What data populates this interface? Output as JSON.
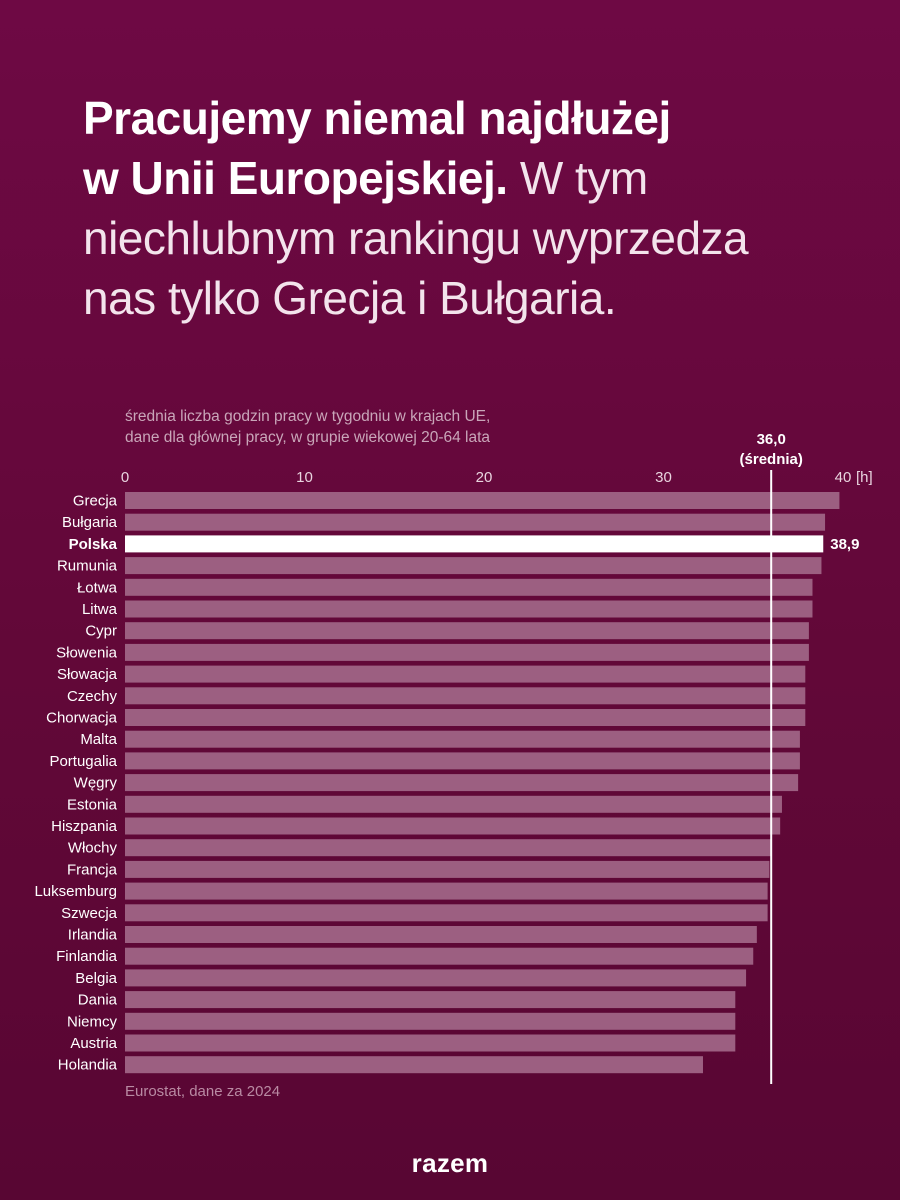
{
  "headline": {
    "strong_line1": "Pracujemy niemal najdłużej",
    "strong_line2": "w Unii Europejskiej.",
    "light_line2": " W tym",
    "light_line3": "niechlubnym rankingu wyprzedza",
    "light_line4": "nas tylko Grecja i Bułgaria."
  },
  "footer": {
    "source": "Eurostat, dane za 2024",
    "brand": "razem"
  },
  "colors": {
    "background": "#6a0840",
    "bar": "#9c5f81",
    "highlight_bar": "#ffffff",
    "text": "#ffffff"
  },
  "chart_data": {
    "type": "bar",
    "orientation": "horizontal",
    "subtitle_line1": "średnia liczba godzin pracy w tygodniu w krajach UE,",
    "subtitle_line2": "dane dla głównej pracy, w grupie wiekowej 20-64 lata",
    "xlim": [
      0,
      40
    ],
    "x_ticks": [
      "0",
      "10",
      "20",
      "30",
      "40"
    ],
    "x_unit": "[h]",
    "grid": false,
    "categories": [
      "Grecja",
      "Bułgaria",
      "Polska",
      "Rumunia",
      "Łotwa",
      "Litwa",
      "Cypr",
      "Słowenia",
      "Słowacja",
      "Czechy",
      "Chorwacja",
      "Malta",
      "Portugalia",
      "Węgry",
      "Estonia",
      "Hiszpania",
      "Włochy",
      "Francja",
      "Luksemburg",
      "Szwecja",
      "Irlandia",
      "Finlandia",
      "Belgia",
      "Dania",
      "Niemcy",
      "Austria",
      "Holandia"
    ],
    "values": [
      39.8,
      39.0,
      38.9,
      38.8,
      38.3,
      38.3,
      38.1,
      38.1,
      37.9,
      37.9,
      37.9,
      37.6,
      37.6,
      37.5,
      36.6,
      36.5,
      36.0,
      35.9,
      35.8,
      35.8,
      35.2,
      35.0,
      34.6,
      34.0,
      34.0,
      34.0,
      32.2
    ],
    "highlight": "Polska",
    "highlight_value_label": "38,9",
    "reference_line": {
      "value": 36.0,
      "label_value": "36,0",
      "label_text": "(średnia)"
    }
  }
}
